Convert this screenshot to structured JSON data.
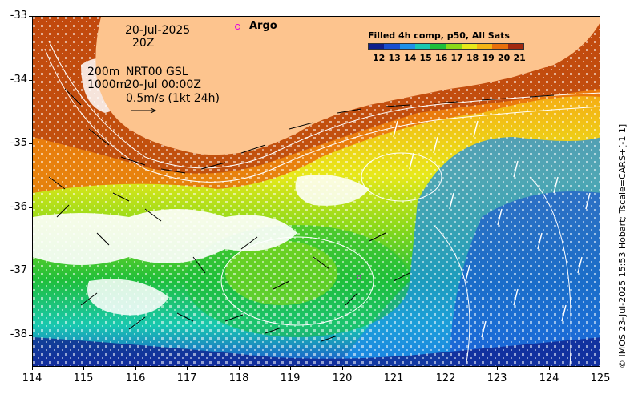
{
  "map": {
    "lon_range": [
      114,
      125
    ],
    "lat_range": [
      -38.5,
      -33
    ],
    "x_ticks": [
      "114",
      "115",
      "116",
      "117",
      "118",
      "119",
      "120",
      "121",
      "122",
      "123",
      "124",
      "125"
    ],
    "y_ticks": [
      "-33",
      "-34",
      "-35",
      "-36",
      "-37",
      "-38"
    ],
    "land_color": "#fdc48e",
    "no_data_color": "#ffffff"
  },
  "annotations": {
    "date": "20-Jul-2025",
    "time": "20Z",
    "depth_200": "200m",
    "product": "NRT00 GSL",
    "depth_1000": "1000m",
    "valid_time": "20-Jul 00:00Z",
    "scale": "0.5m/s (1kt 24h)"
  },
  "argo": {
    "label": "Argo",
    "marker_color": "#e000e0",
    "float_lon": 120.35,
    "float_lat": -37.1
  },
  "legend": {
    "title": "Filled 4h comp, p50, All Sats",
    "ticks": [
      "12",
      "13",
      "14",
      "15",
      "16",
      "17",
      "18",
      "19",
      "20",
      "21"
    ],
    "colors": [
      "#10208c",
      "#1a4fd0",
      "#1e90e8",
      "#19c8b0",
      "#1fbf3a",
      "#8bd91a",
      "#e8e81a",
      "#f4b414",
      "#e8700c",
      "#a32a10"
    ]
  },
  "credit": "© IMOS 23-Jul-2025 15:53 Hobart; Tscale=CARS+[-1 1]"
}
